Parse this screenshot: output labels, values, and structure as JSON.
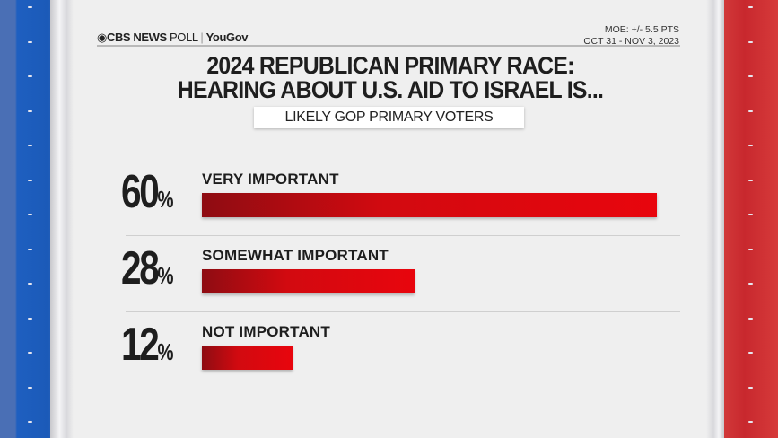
{
  "header": {
    "brand": {
      "cbs": "CBS NEWS",
      "poll": "POLL",
      "partner": "YouGov"
    },
    "moe": "MOE: +/- 5.5 PTS",
    "dates": "OCT 31 - NOV 3, 2023"
  },
  "colors": {
    "bar": "#e3060e",
    "left_panel": "#1e5fc0",
    "right_panel": "#c8282e"
  },
  "chart_data": {
    "type": "bar",
    "orientation": "horizontal",
    "title": "2024 REPUBLICAN PRIMARY RACE:",
    "title_line2": "HEARING ABOUT U.S. AID TO ISRAEL IS...",
    "subtitle": "LIKELY GOP PRIMARY VOTERS",
    "categories": [
      "VERY IMPORTANT",
      "SOMEWHAT IMPORTANT",
      "NOT IMPORTANT"
    ],
    "values": [
      60,
      28,
      12
    ],
    "labels": [
      "60",
      "28",
      "12"
    ],
    "unit": "%",
    "xlim": [
      0,
      100
    ]
  }
}
